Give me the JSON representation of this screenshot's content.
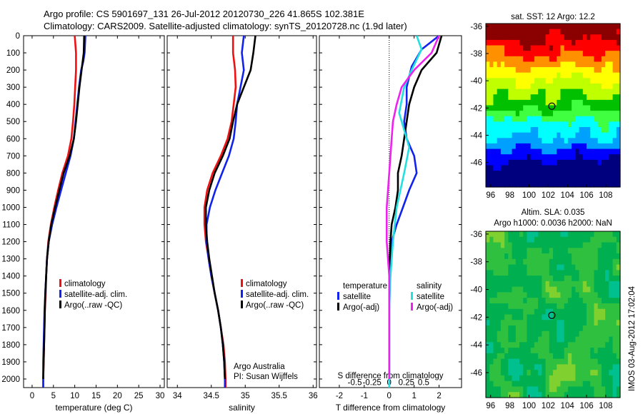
{
  "header": {
    "line1": "Argo profile: CS 5901697_131 26-Jul-2012 20120730_226 41.865S 102.381E",
    "line2": "Climatology: CARS2009. Satellite-adjusted climatology: synTS_20120728.nc (1.9d later)"
  },
  "depth_ticks": [
    "0",
    "100",
    "200",
    "300",
    "400",
    "500",
    "600",
    "700",
    "800",
    "900",
    "1000",
    "1100",
    "1200",
    "1300",
    "1400",
    "1500",
    "1600",
    "1700",
    "1800",
    "1900",
    "2000"
  ],
  "colors": {
    "climatology": "#ee1111",
    "satellite": "#1122ee",
    "argo": "#000000",
    "salinity_satellite": "#22e0e0",
    "salinity_argo": "#ee22ee"
  },
  "chart_data": [
    {
      "type": "line",
      "id": "temperature",
      "xlabel": "temperature (deg C)",
      "ylabel": "",
      "xlim": [
        -2,
        31
      ],
      "ylim": [
        0,
        2050
      ],
      "y_reversed": true,
      "xticks": [
        0,
        5,
        10,
        15,
        20,
        25,
        30
      ],
      "legend": [
        {
          "label": "climatology",
          "color": "#ee1111"
        },
        {
          "label": "satellite-adj. clim.",
          "color": "#1122ee"
        },
        {
          "label": "Argo(..raw -QC)",
          "color": "#000000"
        }
      ],
      "series": [
        {
          "name": "climatology",
          "color": "#ee1111",
          "points": [
            [
              10.0,
              0
            ],
            [
              10.3,
              100
            ],
            [
              10.3,
              200
            ],
            [
              10.1,
              300
            ],
            [
              9.9,
              400
            ],
            [
              9.6,
              500
            ],
            [
              9.2,
              600
            ],
            [
              8.4,
              700
            ],
            [
              7.1,
              800
            ],
            [
              6.1,
              900
            ],
            [
              5.2,
              1000
            ],
            [
              4.4,
              1100
            ],
            [
              3.8,
              1200
            ],
            [
              3.5,
              1300
            ],
            [
              3.3,
              1400
            ],
            [
              3.2,
              1500
            ],
            [
              3.0,
              1600
            ],
            [
              2.9,
              1700
            ],
            [
              2.8,
              1800
            ],
            [
              2.7,
              1900
            ],
            [
              2.6,
              2000
            ],
            [
              2.6,
              2050
            ]
          ]
        },
        {
          "name": "satellite-adj. clim.",
          "color": "#1122ee",
          "points": [
            [
              12.5,
              0
            ],
            [
              12.3,
              100
            ],
            [
              12.0,
              150
            ],
            [
              11.5,
              200
            ],
            [
              11.0,
              300
            ],
            [
              10.6,
              400
            ],
            [
              10.2,
              500
            ],
            [
              9.8,
              600
            ],
            [
              9.0,
              700
            ],
            [
              7.9,
              800
            ],
            [
              6.8,
              900
            ],
            [
              5.7,
              1000
            ],
            [
              4.7,
              1100
            ],
            [
              3.9,
              1200
            ],
            [
              3.5,
              1300
            ],
            [
              3.3,
              1400
            ],
            [
              3.1,
              1500
            ],
            [
              2.9,
              1600
            ],
            [
              2.8,
              1700
            ],
            [
              2.7,
              1800
            ],
            [
              2.6,
              1900
            ],
            [
              2.6,
              2000
            ],
            [
              2.6,
              2050
            ]
          ]
        },
        {
          "name": "Argo(..raw -QC)",
          "color": "#000000",
          "points": [
            [
              12.2,
              0
            ],
            [
              12.1,
              100
            ],
            [
              11.6,
              200
            ],
            [
              11.1,
              300
            ],
            [
              10.7,
              400
            ],
            [
              10.3,
              500
            ],
            [
              9.8,
              600
            ],
            [
              8.8,
              700
            ],
            [
              7.4,
              800
            ],
            [
              6.4,
              900
            ],
            [
              5.4,
              1000
            ],
            [
              4.5,
              1100
            ],
            [
              3.9,
              1200
            ],
            [
              3.5,
              1300
            ],
            [
              3.3,
              1400
            ],
            [
              3.1,
              1500
            ],
            [
              3.0,
              1600
            ],
            [
              2.9,
              1700
            ],
            [
              2.8,
              1800
            ],
            [
              2.7,
              1900
            ],
            [
              2.6,
              2000
            ]
          ]
        }
      ]
    },
    {
      "type": "line",
      "id": "salinity",
      "xlabel": "salinity",
      "ylabel": "",
      "xlim": [
        33.85,
        36.05
      ],
      "ylim": [
        0,
        2050
      ],
      "y_reversed": true,
      "xticks": [
        34,
        34.5,
        35,
        35.5,
        36
      ],
      "legend": [
        {
          "label": "climatology",
          "color": "#ee1111"
        },
        {
          "label": "satellite-adj. clim.",
          "color": "#1122ee"
        },
        {
          "label": "Argo(..raw -QC)",
          "color": "#000000"
        }
      ],
      "annotation": [
        "Argo Australia",
        "PI: Susan Wijffels"
      ],
      "series": [
        {
          "name": "climatology",
          "color": "#ee1111",
          "points": [
            [
              34.82,
              0
            ],
            [
              34.82,
              100
            ],
            [
              34.85,
              200
            ],
            [
              34.86,
              300
            ],
            [
              34.83,
              400
            ],
            [
              34.8,
              500
            ],
            [
              34.74,
              600
            ],
            [
              34.64,
              700
            ],
            [
              34.52,
              800
            ],
            [
              34.44,
              900
            ],
            [
              34.4,
              1000
            ],
            [
              34.4,
              1100
            ],
            [
              34.42,
              1200
            ],
            [
              34.46,
              1300
            ],
            [
              34.5,
              1400
            ],
            [
              34.55,
              1500
            ],
            [
              34.6,
              1600
            ],
            [
              34.64,
              1700
            ],
            [
              34.68,
              1800
            ],
            [
              34.7,
              1900
            ],
            [
              34.71,
              2000
            ],
            [
              34.71,
              2050
            ]
          ]
        },
        {
          "name": "satellite-adj. clim.",
          "color": "#1122ee",
          "points": [
            [
              34.98,
              0
            ],
            [
              34.95,
              100
            ],
            [
              34.98,
              200
            ],
            [
              34.93,
              300
            ],
            [
              34.88,
              400
            ],
            [
              34.86,
              500
            ],
            [
              34.83,
              600
            ],
            [
              34.76,
              700
            ],
            [
              34.66,
              800
            ],
            [
              34.56,
              900
            ],
            [
              34.48,
              1000
            ],
            [
              34.43,
              1100
            ],
            [
              34.43,
              1200
            ],
            [
              34.46,
              1300
            ],
            [
              34.5,
              1400
            ],
            [
              34.55,
              1500
            ],
            [
              34.6,
              1600
            ],
            [
              34.64,
              1700
            ],
            [
              34.67,
              1800
            ],
            [
              34.69,
              1900
            ],
            [
              34.7,
              2000
            ],
            [
              34.7,
              2050
            ]
          ]
        },
        {
          "name": "Argo(..raw -QC)",
          "color": "#000000",
          "points": [
            [
              35.15,
              0
            ],
            [
              35.12,
              100
            ],
            [
              35.08,
              200
            ],
            [
              34.98,
              300
            ],
            [
              34.88,
              400
            ],
            [
              34.82,
              500
            ],
            [
              34.77,
              600
            ],
            [
              34.67,
              700
            ],
            [
              34.55,
              800
            ],
            [
              34.47,
              900
            ],
            [
              34.42,
              1000
            ],
            [
              34.42,
              1100
            ],
            [
              34.44,
              1200
            ],
            [
              34.47,
              1300
            ],
            [
              34.51,
              1400
            ],
            [
              34.55,
              1500
            ],
            [
              34.6,
              1600
            ],
            [
              34.64,
              1700
            ],
            [
              34.67,
              1800
            ],
            [
              34.69,
              1900
            ],
            [
              34.7,
              2000
            ]
          ]
        }
      ]
    },
    {
      "type": "line",
      "id": "differences",
      "xlabel": "T difference from climatology",
      "xlabel_top": "S difference from climatology",
      "ylabel": "",
      "xlim": [
        -2.8,
        2.9
      ],
      "ylim": [
        0,
        2050
      ],
      "y_reversed": true,
      "xticks": [
        -2,
        -1,
        0,
        1,
        2
      ],
      "xticks_top_labels": [
        "-0.5",
        "-0.25",
        "0",
        "0.25",
        "0.5"
      ],
      "zero_line": "dotted",
      "legend_temperature": {
        "title": "temperature",
        "items": [
          {
            "label": "satellite",
            "color": "#1122ee"
          },
          {
            "label": "Argo(-adj)",
            "color": "#000000"
          }
        ]
      },
      "legend_salinity": {
        "title": "salinity",
        "items": [
          {
            "label": "satellite",
            "color": "#22e0e0"
          },
          {
            "label": "Argo(-adj)",
            "color": "#ee22ee"
          }
        ]
      },
      "series": [
        {
          "name": "temperature satellite",
          "color": "#1122ee",
          "points": [
            [
              2.0,
              0
            ],
            [
              1.3,
              80
            ],
            [
              0.9,
              180
            ],
            [
              0.7,
              300
            ],
            [
              0.7,
              400
            ],
            [
              0.6,
              500
            ],
            [
              0.7,
              600
            ],
            [
              1.0,
              700
            ],
            [
              1.1,
              800
            ],
            [
              0.8,
              900
            ],
            [
              0.55,
              1000
            ],
            [
              0.3,
              1100
            ],
            [
              0.1,
              1200
            ],
            [
              0.05,
              1300
            ],
            [
              0.02,
              1400
            ],
            [
              0.0,
              1500
            ],
            [
              0.0,
              1700
            ],
            [
              0.0,
              1900
            ],
            [
              0.0,
              2050
            ]
          ]
        },
        {
          "name": "temperature Argo(-adj)",
          "color": "#000000",
          "points": [
            [
              2.1,
              0
            ],
            [
              1.9,
              100
            ],
            [
              1.3,
              200
            ],
            [
              1.0,
              300
            ],
            [
              0.8,
              400
            ],
            [
              0.7,
              500
            ],
            [
              0.6,
              600
            ],
            [
              0.5,
              700
            ],
            [
              0.35,
              800
            ],
            [
              0.35,
              900
            ],
            [
              0.25,
              1000
            ],
            [
              0.1,
              1100
            ],
            [
              0.05,
              1200
            ],
            [
              0.02,
              1300
            ],
            [
              0.0,
              1500
            ],
            [
              0.0,
              1900
            ],
            [
              0.0,
              2000
            ]
          ]
        },
        {
          "name": "salinity satellite",
          "color": "#22e0e0",
          "points": [
            [
              1.1,
              0
            ],
            [
              1.3,
              80
            ],
            [
              0.9,
              200
            ],
            [
              0.6,
              300
            ],
            [
              0.4,
              450
            ],
            [
              0.6,
              550
            ],
            [
              0.8,
              650
            ],
            [
              0.6,
              800
            ],
            [
              0.3,
              1000
            ],
            [
              0.15,
              1200
            ],
            [
              0.05,
              1400
            ],
            [
              0.0,
              1600
            ],
            [
              0.0,
              1800
            ],
            [
              0.0,
              2050
            ]
          ]
        },
        {
          "name": "salinity Argo(-adj)",
          "color": "#ee22ee",
          "points": [
            [
              2.0,
              0
            ],
            [
              1.7,
              100
            ],
            [
              1.0,
              200
            ],
            [
              0.5,
              300
            ],
            [
              0.3,
              400
            ],
            [
              0.15,
              500
            ],
            [
              0.1,
              600
            ],
            [
              0.05,
              700
            ],
            [
              0.0,
              800
            ],
            [
              -0.1,
              1000
            ],
            [
              -0.1,
              1200
            ],
            [
              0.0,
              1400
            ],
            [
              0.0,
              1700
            ],
            [
              0.0,
              2000
            ]
          ]
        }
      ]
    },
    {
      "type": "heatmap",
      "id": "sst_map",
      "title": "sat. SST: 12 Argo: 12.2",
      "xlim": [
        95.5,
        109.5
      ],
      "ylim": [
        -47.8,
        -35.8
      ],
      "xticks": [
        "96",
        "98",
        "100",
        "102",
        "104",
        "106",
        "108"
      ],
      "yticks": [
        "-36",
        "-38",
        "-40",
        "-42",
        "-44",
        "-46"
      ],
      "marker": [
        102.381,
        -41.865
      ],
      "colorscale": [
        "#00007f",
        "#0000ff",
        "#00a0ff",
        "#00ffff",
        "#40ff40",
        "#00c000",
        "#c0ff00",
        "#ffff00",
        "#ff9000",
        "#ff0000",
        "#8b0000"
      ]
    },
    {
      "type": "heatmap",
      "id": "sla_map",
      "title": "Altim. SLA: 0.035",
      "subtitle": "Argo h1000: 0.0036 h2000: NaN",
      "xlim": [
        95.5,
        109.5
      ],
      "ylim": [
        -47.8,
        -35.8
      ],
      "xticks": [
        "96",
        "98",
        "100",
        "102",
        "104",
        "106",
        "108"
      ],
      "yticks": [
        "-36",
        "-38",
        "-40",
        "-42",
        "-44",
        "-46"
      ],
      "marker": [
        102.381,
        -41.865
      ],
      "colorscale": [
        "#00b0c0",
        "#00c090",
        "#00b050",
        "#30c040",
        "#80d030",
        "#d0e020",
        "#ffd000",
        "#ff9000"
      ]
    }
  ],
  "footer": {
    "stamp": "IMOS 03-Aug-2012 17:02:04"
  }
}
